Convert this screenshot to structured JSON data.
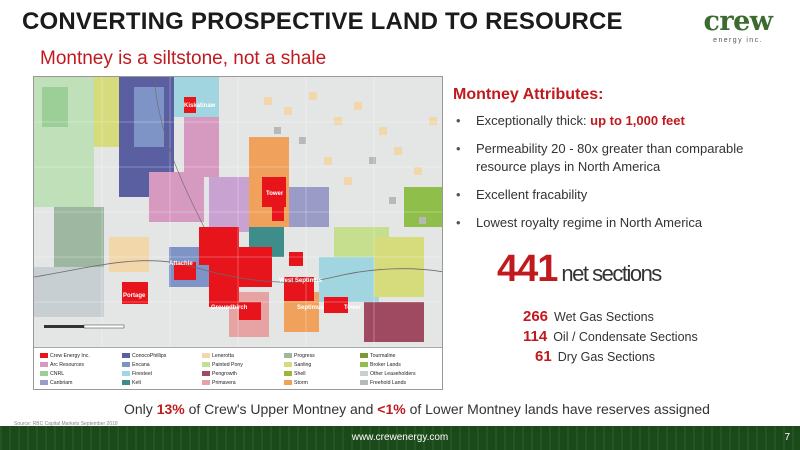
{
  "slide": {
    "title": "CONVERTING PROSPECTIVE LAND TO RESOURCE",
    "subtitle": "Montney is a siltstone, not a shale"
  },
  "logo": {
    "brand": "crew",
    "tagline": "energy inc."
  },
  "map": {
    "place_labels": [
      "Kiskatinaw",
      "Tower",
      "Attachie",
      "Portage",
      "West Septimus",
      "Groundbirch",
      "Septimus",
      "Tower"
    ],
    "legend": [
      {
        "name": "Crew Energy Inc.",
        "color": "#e8141c"
      },
      {
        "name": "Arc Resources",
        "color": "#d69ac1"
      },
      {
        "name": "CNRL",
        "color": "#9ccf98"
      },
      {
        "name": "Canbriam",
        "color": "#9b9bc8"
      },
      {
        "name": "ConocoPhillips",
        "color": "#5a5fa2"
      },
      {
        "name": "Encana",
        "color": "#7f94c6"
      },
      {
        "name": "Firesteel",
        "color": "#a1d6e0"
      },
      {
        "name": "Kelt",
        "color": "#3f8d8a"
      },
      {
        "name": "Lenerotta",
        "color": "#f2d7aa"
      },
      {
        "name": "Painted Pony",
        "color": "#c5df8e"
      },
      {
        "name": "Pengrowth",
        "color": "#a04a62"
      },
      {
        "name": "Primavera",
        "color": "#e7a3a3"
      },
      {
        "name": "Progress",
        "color": "#9db7a0"
      },
      {
        "name": "Sanling",
        "color": "#d6dc7c"
      },
      {
        "name": "Shell",
        "color": "#a4b23a"
      },
      {
        "name": "Storm",
        "color": "#f0a15c"
      },
      {
        "name": "Tourmaline",
        "color": "#7d9a38"
      },
      {
        "name": "Broker Lands",
        "color": "#8fbf4a"
      },
      {
        "name": "Other Leaseholders",
        "color": "#c8cfd3"
      },
      {
        "name": "Freehold Lands",
        "color": "#b8b8b8"
      }
    ]
  },
  "attributes": {
    "heading": "Montney Attributes:",
    "b1_text": "Exceptionally thick: ",
    "b1_highlight": "up to 1,000 feet",
    "b2_text": "Permeability 20 - 80x greater than comparable resource plays in North America",
    "b3_text": "Excellent fracability",
    "b4_text": "Lowest royalty regime in North America"
  },
  "net_sections": {
    "total": "441",
    "label": "net sections",
    "wet_gas_value": "266",
    "wet_gas_label": "Wet Gas Sections",
    "oil_value": "114",
    "oil_label": "Oil / Condensate Sections",
    "dry_gas_value": "61",
    "dry_gas_label": "Dry Gas Sections"
  },
  "reserves": {
    "pre": "Only ",
    "upper_pct": "13%",
    "mid": " of Crew's Upper Montney and ",
    "lower_pct": "<1%",
    "post": " of Lower Montney lands have reserves assigned"
  },
  "source": "Source: RBC Capital Markets September 2018",
  "footer": {
    "url": "www.crewenergy.com",
    "page": "7"
  }
}
